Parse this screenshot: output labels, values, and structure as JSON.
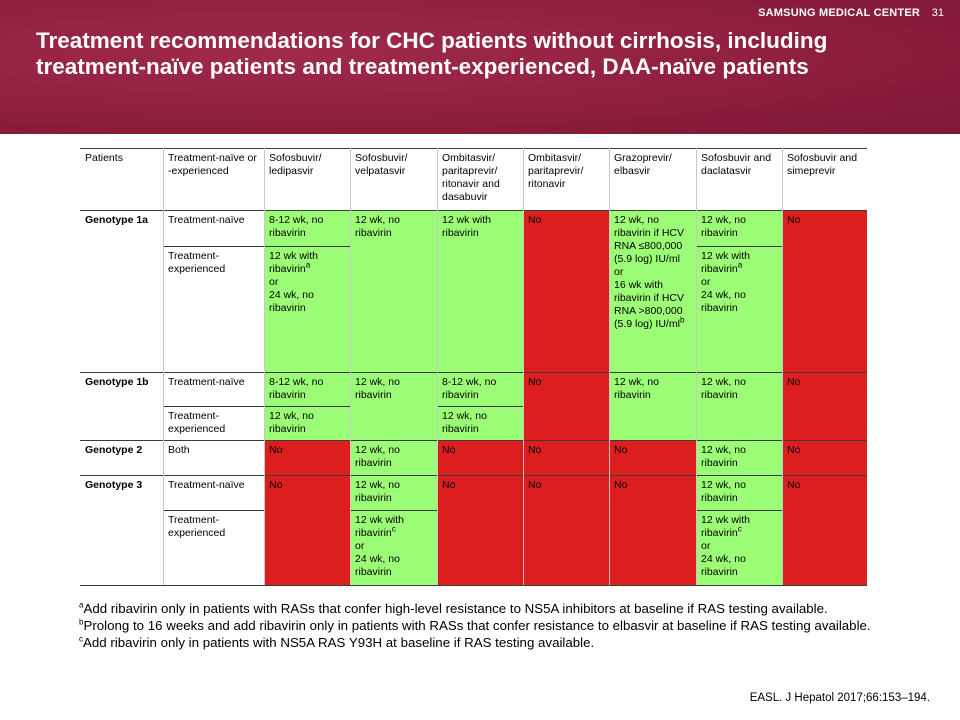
{
  "header": {
    "brand": "SAMSUNG MEDICAL CENTER",
    "page_number": "31",
    "title": "Treatment recommendations for CHC patients without cirrhosis, including treatment-naïve patients and treatment-experienced, DAA-naïve patients"
  },
  "colors": {
    "recommended": "#9cfd76",
    "not_recommended": "#dc1e1e",
    "header_band": "#8e1f3d"
  },
  "table": {
    "headers": {
      "patients": "Patients",
      "status": "Treatment-naïve or -experienced",
      "sof_led": "Sofosbuvir/ ledipasvir",
      "sof_vel": "Sofosbuvir/ velpatasvir",
      "omb_das": "Ombitasvir/ paritaprevir/ ritonavir and dasabuvir",
      "omb_rit": "Ombitasvir/ paritaprevir/ ritonavir",
      "gra_elb": "Grazoprevir/ elbasvir",
      "sof_dac": "Sofosbuvir and daclatasvir",
      "sof_sim": "Sofosbuvir and simeprevir"
    },
    "g1a": {
      "label": "Genotype 1a",
      "naive": "Treatment-naïve",
      "experienced": "Treatment-experienced",
      "sof_led_naive": "8-12 wk, no ribavirin",
      "sof_led_exp_1": "12 wk with ribavirin",
      "sof_led_exp_sup": "a",
      "sof_led_exp_2": "or",
      "sof_led_exp_3": "24 wk, no ribavirin",
      "sof_vel": "12 wk, no ribavirin",
      "omb_das": "12 wk with ribavirin",
      "omb_rit": "No",
      "gra_elb_1": "12 wk, no ribavirin if HCV RNA ≤800,000 (5.9 log) IU/ml",
      "gra_elb_2": "or",
      "gra_elb_3": "16 wk with ribavirin if HCV RNA >800,000 (5.9 log) IU/ml",
      "gra_elb_sup": "b",
      "sof_dac_naive": "12 wk, no ribavirin",
      "sof_dac_exp_1": "12 wk with ribavirin",
      "sof_dac_exp_sup": "a",
      "sof_dac_exp_2": "or",
      "sof_dac_exp_3": "24 wk, no ribavirin",
      "sof_sim": "No"
    },
    "g1b": {
      "label": "Genotype 1b",
      "naive": "Treatment-naïve",
      "experienced": "Treatment-experienced",
      "sof_led_naive": "8-12 wk, no ribavirin",
      "sof_led_exp": "12 wk, no ribavirin",
      "sof_vel": "12 wk, no ribavirin",
      "omb_das_naive": "8-12 wk, no ribavirin",
      "omb_das_exp": "12 wk, no ribavirin",
      "omb_rit": "No",
      "gra_elb": "12 wk, no ribavirin",
      "sof_dac": "12 wk, no ribavirin",
      "sof_sim": "No"
    },
    "g2": {
      "label": "Genotype 2",
      "status": "Both",
      "sof_led": "No",
      "sof_vel": "12 wk, no ribavirin",
      "omb_das": "No",
      "omb_rit": "No",
      "gra_elb": "No",
      "sof_dac": "12 wk, no ribavirin",
      "sof_sim": "No"
    },
    "g3": {
      "label": "Genotype 3",
      "naive": "Treatment-naïve",
      "experienced": "Treatment-experienced",
      "sof_led": "No",
      "sof_vel_naive": "12 wk, no ribavirin",
      "sof_vel_exp_1": "12 wk with ribavirin",
      "sof_vel_exp_sup": "c",
      "sof_vel_exp_2": "or",
      "sof_vel_exp_3": "24 wk, no ribavirin",
      "omb_das": "No",
      "omb_rit": "No",
      "gra_elb": "No",
      "sof_dac_naive": "12 wk, no ribavirin",
      "sof_dac_exp_1": "12 wk with ribavirin",
      "sof_dac_exp_sup": "c",
      "sof_dac_exp_2": "or",
      "sof_dac_exp_3": "24 wk, no ribavirin",
      "sof_sim": "No"
    }
  },
  "footnotes": {
    "a_mark": "a",
    "a": "Add ribavirin only in patients with RASs that confer high-level resistance to NS5A inhibitors at baseline if RAS testing available.",
    "b_mark": "b",
    "b": "Prolong to 16 weeks and add ribavirin only in patients with RASs that confer resistance to elbasvir at baseline if RAS testing available.",
    "c_mark": "c",
    "c": "Add ribavirin only in patients with NS5A RAS Y93H at baseline if RAS testing available."
  },
  "citation": "EASL. J Hepatol 2017;66:153–194."
}
